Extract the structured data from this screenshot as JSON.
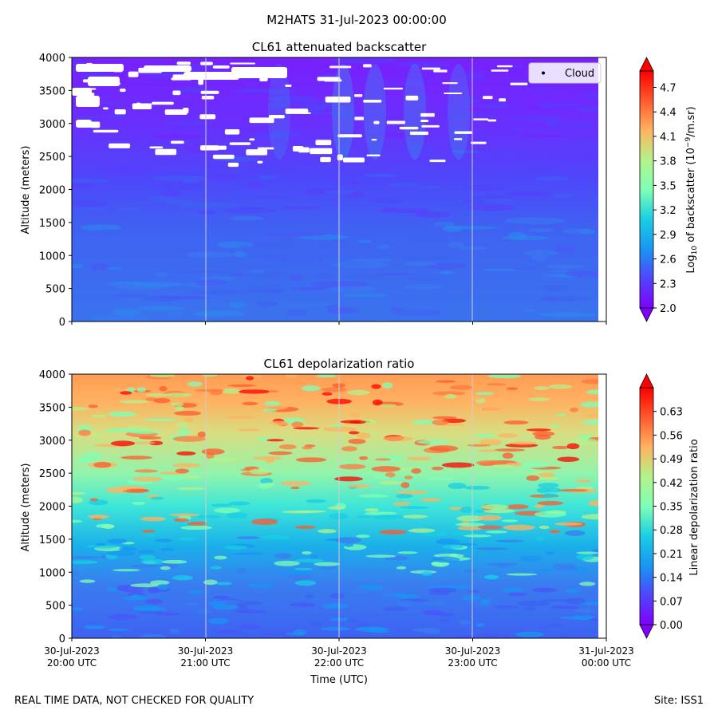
{
  "figure_title": "M2HATS 31-Jul-2023 00:00:00",
  "footer_left": "REAL TIME DATA, NOT CHECKED FOR QUALITY",
  "footer_right": "Site: ISS1",
  "chart_data": [
    {
      "type": "heatmap",
      "title": "CL61 attenuated backscatter",
      "ylabel": "Altitude (meters)",
      "ylim": [
        0,
        4000
      ],
      "y_ticks": [
        "0",
        "500",
        "1000",
        "1500",
        "2000",
        "2500",
        "3000",
        "3500",
        "4000"
      ],
      "x_ticks_hidden": true,
      "colorbar": {
        "label_prefix": "Log",
        "label_sub": "10",
        "label_mid": " of backscatter (10",
        "label_sup": "−9",
        "label_suffix": "/m.sr)",
        "range": [
          2.0,
          4.9
        ],
        "ticks": [
          "2.0",
          "2.3",
          "2.6",
          "2.9",
          "3.2",
          "3.5",
          "3.8",
          "4.1",
          "4.4",
          "4.7"
        ],
        "extend": "both",
        "colormap": "rainbow"
      },
      "legend": {
        "label": "Cloud",
        "position": "top-right"
      }
    },
    {
      "type": "heatmap",
      "title": "CL61 depolarization ratio",
      "ylabel": "Altitude (meters)",
      "xlabel": "Time (UTC)",
      "ylim": [
        0,
        4000
      ],
      "y_ticks": [
        "0",
        "500",
        "1000",
        "1500",
        "2000",
        "2500",
        "3000",
        "3500",
        "4000"
      ],
      "x_ticks": [
        {
          "date": "30-Jul-2023",
          "time": "20:00 UTC"
        },
        {
          "date": "30-Jul-2023",
          "time": "21:00 UTC"
        },
        {
          "date": "30-Jul-2023",
          "time": "22:00 UTC"
        },
        {
          "date": "30-Jul-2023",
          "time": "23:00 UTC"
        },
        {
          "date": "31-Jul-2023",
          "time": "00:00 UTC"
        }
      ],
      "colorbar": {
        "label": "Linear depolarization ratio",
        "range": [
          0.0,
          0.7
        ],
        "ticks": [
          "0.00",
          "0.07",
          "0.14",
          "0.21",
          "0.28",
          "0.35",
          "0.42",
          "0.49",
          "0.56",
          "0.63"
        ],
        "extend": "both",
        "colormap": "rainbow"
      }
    }
  ]
}
